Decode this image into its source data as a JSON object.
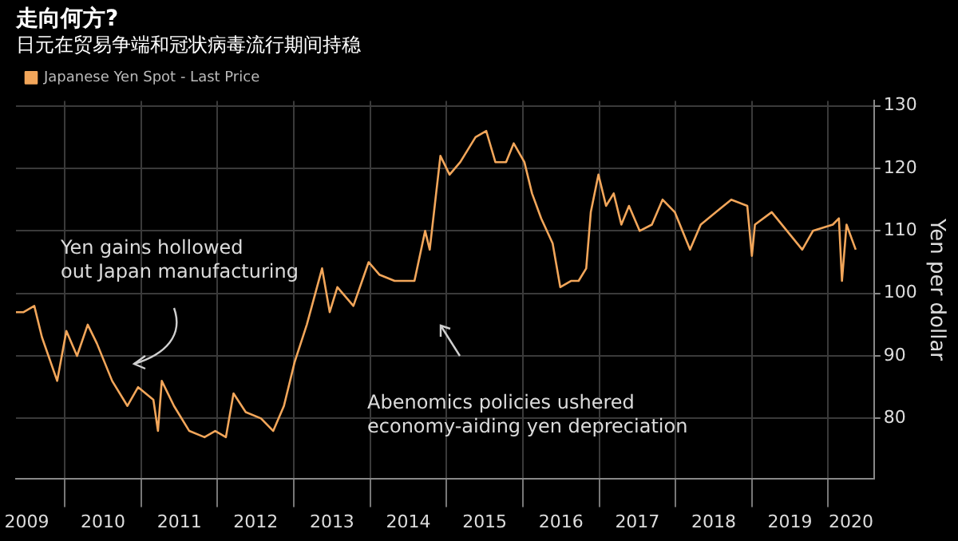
{
  "chart_data": {
    "type": "line",
    "title": "走向何方?",
    "subtitle": "日元在贸易争端和冠状病毒流行期间持稳",
    "ylabel": "Yen per dollar",
    "annotations": [
      "Yen gains hollowed\nout Japan manufacturing",
      "Abenomics policies ushered\neconomy-aiding yen depreciation"
    ],
    "x": [
      2009.36,
      2009.46,
      2009.6,
      2009.7,
      2009.9,
      2010.02,
      2010.16,
      2010.3,
      2010.42,
      2010.62,
      2010.82,
      2010.96,
      2011.16,
      2011.22,
      2011.27,
      2011.43,
      2011.63,
      2011.83,
      2011.97,
      2012.11,
      2012.21,
      2012.37,
      2012.57,
      2012.73,
      2012.87,
      2013.01,
      2013.17,
      2013.37,
      2013.47,
      2013.57,
      2013.78,
      2013.98,
      2014.12,
      2014.32,
      2014.58,
      2014.72,
      2014.78,
      2014.92,
      2015.04,
      2015.18,
      2015.38,
      2015.52,
      2015.64,
      2015.78,
      2015.88,
      2016.02,
      2016.12,
      2016.24,
      2016.39,
      2016.49,
      2016.63,
      2016.73,
      2016.83,
      2016.89,
      2016.99,
      2017.09,
      2017.19,
      2017.29,
      2017.39,
      2017.53,
      2017.69,
      2017.83,
      2017.99,
      2018.19,
      2018.33,
      2018.53,
      2018.73,
      2018.94,
      2019.0,
      2019.04,
      2019.26,
      2019.46,
      2019.66,
      2019.8,
      2020.06,
      2020.14,
      2020.18,
      2020.24,
      2020.36
    ],
    "series": [
      {
        "name": "Japanese Yen Spot - Last Price",
        "color": "#f2a65a",
        "values": [
          97,
          97,
          98,
          93,
          86,
          94,
          90,
          95,
          92,
          86,
          82,
          85,
          83,
          78,
          86,
          82,
          78,
          77,
          78,
          77,
          84,
          81,
          80,
          78,
          82,
          89,
          95,
          104,
          97,
          101,
          98,
          105,
          103,
          102,
          102,
          110,
          107,
          122,
          119,
          121,
          125,
          126,
          121,
          121,
          124,
          121,
          116,
          112,
          108,
          101,
          102,
          102,
          104,
          113,
          119,
          114,
          116,
          111,
          114,
          110,
          111,
          115,
          113,
          107,
          111,
          113,
          115,
          114,
          106,
          111,
          113,
          110,
          107,
          110,
          111,
          112,
          102,
          111,
          107
        ]
      }
    ],
    "xlim": [
      2009.36,
      2020.6
    ],
    "xticks": [
      {
        "value": 2009.5,
        "label": "2009"
      },
      {
        "value": 2010,
        "label": null
      },
      {
        "value": 2010.5,
        "label": "2010"
      },
      {
        "value": 2011,
        "label": null
      },
      {
        "value": 2011.5,
        "label": "2011"
      },
      {
        "value": 2012,
        "label": null
      },
      {
        "value": 2012.5,
        "label": "2012"
      },
      {
        "value": 2013,
        "label": null
      },
      {
        "value": 2013.5,
        "label": "2013"
      },
      {
        "value": 2014,
        "label": null
      },
      {
        "value": 2014.5,
        "label": "2014"
      },
      {
        "value": 2015,
        "label": null
      },
      {
        "value": 2015.5,
        "label": "2015"
      },
      {
        "value": 2016,
        "label": null
      },
      {
        "value": 2016.5,
        "label": "2016"
      },
      {
        "value": 2017,
        "label": null
      },
      {
        "value": 2017.5,
        "label": "2017"
      },
      {
        "value": 2018,
        "label": null
      },
      {
        "value": 2018.5,
        "label": "2018"
      },
      {
        "value": 2019,
        "label": null
      },
      {
        "value": 2019.5,
        "label": "2019"
      },
      {
        "value": 2020,
        "label": null
      },
      {
        "value": 2020.3,
        "label": "2020"
      }
    ],
    "ylim": [
      70.4,
      130.8
    ],
    "yticks": [
      80,
      90,
      100,
      110,
      120,
      130
    ],
    "grid": true,
    "legend": "top left",
    "marker": "none",
    "line_style": "solid"
  }
}
